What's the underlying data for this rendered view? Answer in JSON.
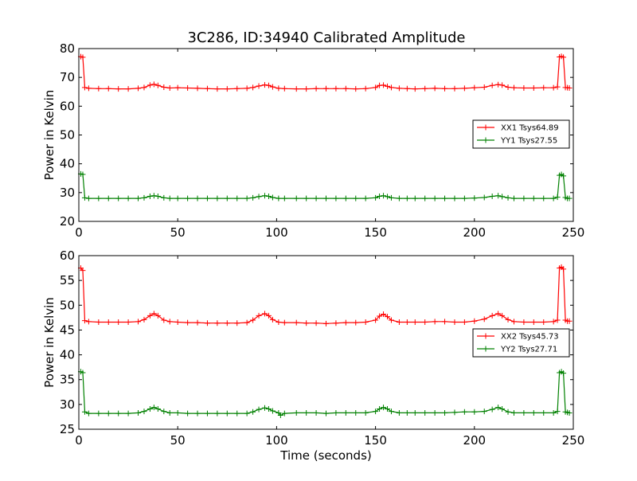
{
  "figure": {
    "title": "3C286, ID:34940 Calibrated Amplitude"
  },
  "chart_data": [
    {
      "type": "line",
      "title": "3C286, ID:34940 Calibrated Amplitude",
      "xlabel": "",
      "ylabel": "Power in Kelvin",
      "xlim": [
        0,
        250
      ],
      "ylim": [
        20,
        80
      ],
      "xticks": [
        0,
        50,
        100,
        150,
        200,
        250
      ],
      "yticks": [
        20,
        30,
        40,
        50,
        60,
        70,
        80
      ],
      "grid": false,
      "legend_position": "center-right",
      "series": [
        {
          "name": "XX1 Tsys64.89",
          "color": "#ff0000",
          "marker": "plus",
          "x": [
            1,
            2,
            3,
            5,
            10,
            15,
            20,
            25,
            30,
            33,
            36,
            38,
            40,
            43,
            46,
            50,
            55,
            60,
            65,
            70,
            75,
            80,
            85,
            88,
            91,
            94,
            96,
            98,
            101,
            104,
            110,
            115,
            120,
            125,
            130,
            135,
            140,
            145,
            150,
            152,
            154,
            156,
            158,
            162,
            166,
            170,
            175,
            180,
            185,
            190,
            195,
            200,
            205,
            209,
            212,
            214,
            217,
            220,
            225,
            230,
            235,
            240,
            242,
            243,
            244,
            245,
            246,
            247,
            248
          ],
          "y": [
            77.2,
            77.0,
            66.5,
            66.2,
            66.1,
            66.1,
            66.0,
            66.0,
            66.2,
            66.5,
            67.3,
            67.6,
            67.2,
            66.6,
            66.3,
            66.4,
            66.3,
            66.2,
            66.1,
            66.0,
            66.0,
            66.1,
            66.2,
            66.5,
            67.0,
            67.4,
            67.2,
            66.7,
            66.2,
            66.1,
            66.0,
            66.0,
            66.1,
            66.1,
            66.1,
            66.1,
            66.0,
            66.1,
            66.5,
            67.2,
            67.3,
            66.9,
            66.5,
            66.2,
            66.1,
            66.0,
            66.1,
            66.2,
            66.1,
            66.1,
            66.2,
            66.4,
            66.6,
            67.2,
            67.5,
            67.3,
            66.6,
            66.4,
            66.3,
            66.3,
            66.4,
            66.4,
            66.7,
            77.1,
            77.3,
            77.0,
            66.5,
            66.4,
            66.3
          ]
        },
        {
          "name": "YY1 Tsys27.55",
          "color": "#008000",
          "marker": "plus",
          "x": [
            1,
            2,
            3,
            5,
            10,
            15,
            20,
            25,
            30,
            33,
            36,
            38,
            40,
            43,
            46,
            50,
            55,
            60,
            65,
            70,
            75,
            80,
            85,
            88,
            91,
            94,
            96,
            98,
            101,
            104,
            110,
            115,
            120,
            125,
            130,
            135,
            140,
            145,
            150,
            152,
            154,
            156,
            158,
            162,
            166,
            170,
            175,
            180,
            185,
            190,
            195,
            200,
            205,
            209,
            212,
            214,
            217,
            220,
            225,
            230,
            235,
            240,
            242,
            243,
            244,
            245,
            246,
            247,
            248
          ],
          "y": [
            36.5,
            36.3,
            28.2,
            28.0,
            28.0,
            28.0,
            28.0,
            28.0,
            28.0,
            28.2,
            28.7,
            28.9,
            28.7,
            28.2,
            28.0,
            28.0,
            28.0,
            28.0,
            28.0,
            28.0,
            28.0,
            28.0,
            28.0,
            28.2,
            28.6,
            28.9,
            28.7,
            28.3,
            28.0,
            28.0,
            28.0,
            28.0,
            28.0,
            28.0,
            28.0,
            28.0,
            28.0,
            28.0,
            28.2,
            28.7,
            28.9,
            28.6,
            28.2,
            28.0,
            28.0,
            28.0,
            28.0,
            28.0,
            28.0,
            28.0,
            28.0,
            28.1,
            28.3,
            28.7,
            28.9,
            28.6,
            28.2,
            28.0,
            28.0,
            28.0,
            28.0,
            28.0,
            28.4,
            36.0,
            36.3,
            35.8,
            28.3,
            28.0,
            28.0
          ]
        }
      ]
    },
    {
      "type": "line",
      "title": "",
      "xlabel": "Time (seconds)",
      "ylabel": "Power in Kelvin",
      "xlim": [
        0,
        250
      ],
      "ylim": [
        25,
        60
      ],
      "xticks": [
        0,
        50,
        100,
        150,
        200,
        250
      ],
      "yticks": [
        25,
        30,
        35,
        40,
        45,
        50,
        55,
        60
      ],
      "grid": false,
      "legend_position": "center-right",
      "series": [
        {
          "name": "XX2 Tsys45.73",
          "color": "#ff0000",
          "marker": "plus",
          "x": [
            1,
            2,
            3,
            5,
            10,
            15,
            20,
            25,
            30,
            33,
            36,
            38,
            40,
            43,
            46,
            50,
            55,
            60,
            65,
            70,
            75,
            80,
            85,
            88,
            91,
            94,
            96,
            98,
            101,
            104,
            110,
            115,
            120,
            125,
            130,
            135,
            140,
            145,
            150,
            152,
            154,
            156,
            158,
            162,
            166,
            170,
            175,
            180,
            185,
            190,
            195,
            200,
            205,
            209,
            212,
            214,
            217,
            220,
            225,
            230,
            235,
            240,
            242,
            243,
            244,
            245,
            246,
            247,
            248
          ],
          "y": [
            57.5,
            57.0,
            46.9,
            46.7,
            46.6,
            46.6,
            46.6,
            46.6,
            46.7,
            47.1,
            47.9,
            48.3,
            47.9,
            47.0,
            46.7,
            46.6,
            46.5,
            46.5,
            46.4,
            46.4,
            46.4,
            46.4,
            46.5,
            47.0,
            47.9,
            48.3,
            47.9,
            47.1,
            46.6,
            46.5,
            46.5,
            46.4,
            46.4,
            46.3,
            46.4,
            46.5,
            46.5,
            46.6,
            47.0,
            47.8,
            48.2,
            47.7,
            47.0,
            46.6,
            46.6,
            46.6,
            46.6,
            46.7,
            46.7,
            46.6,
            46.6,
            46.8,
            47.2,
            47.9,
            48.3,
            47.9,
            47.1,
            46.7,
            46.6,
            46.6,
            46.6,
            46.7,
            47.0,
            57.5,
            57.7,
            57.3,
            47.0,
            46.8,
            46.8
          ]
        },
        {
          "name": "YY2 Tsys27.71",
          "color": "#008000",
          "marker": "plus",
          "x": [
            1,
            2,
            3,
            5,
            10,
            15,
            20,
            25,
            30,
            33,
            36,
            38,
            40,
            43,
            46,
            50,
            55,
            60,
            65,
            70,
            75,
            80,
            85,
            88,
            91,
            94,
            96,
            98,
            101,
            102,
            104,
            110,
            115,
            120,
            125,
            130,
            135,
            140,
            145,
            150,
            152,
            154,
            156,
            158,
            162,
            166,
            170,
            175,
            180,
            185,
            190,
            195,
            200,
            205,
            209,
            212,
            214,
            217,
            220,
            225,
            230,
            235,
            240,
            242,
            243,
            244,
            245,
            246,
            247,
            248
          ],
          "y": [
            36.6,
            36.4,
            28.5,
            28.2,
            28.2,
            28.2,
            28.2,
            28.2,
            28.3,
            28.6,
            29.1,
            29.4,
            29.1,
            28.6,
            28.3,
            28.3,
            28.2,
            28.2,
            28.2,
            28.2,
            28.2,
            28.2,
            28.2,
            28.5,
            29.0,
            29.3,
            29.1,
            28.7,
            28.3,
            27.8,
            28.2,
            28.3,
            28.3,
            28.3,
            28.2,
            28.3,
            28.3,
            28.3,
            28.3,
            28.6,
            29.1,
            29.4,
            29.1,
            28.6,
            28.3,
            28.3,
            28.3,
            28.3,
            28.3,
            28.3,
            28.4,
            28.5,
            28.5,
            28.6,
            29.0,
            29.4,
            29.1,
            28.5,
            28.3,
            28.3,
            28.3,
            28.3,
            28.3,
            28.6,
            36.4,
            36.6,
            36.3,
            28.5,
            28.4,
            28.3
          ]
        }
      ]
    }
  ]
}
